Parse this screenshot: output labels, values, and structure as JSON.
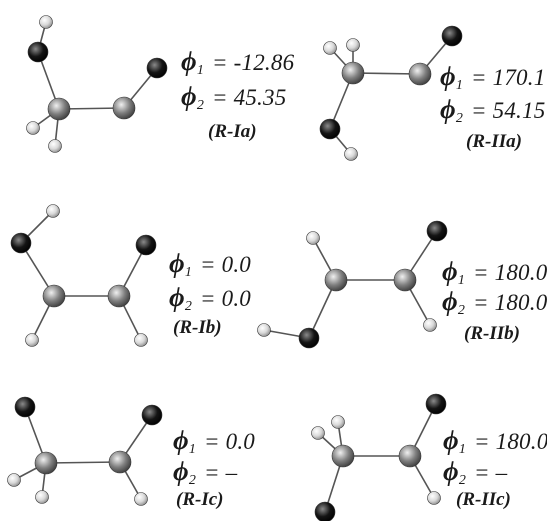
{
  "colors": {
    "bond": "#555555",
    "carbon": "#7f7f7f",
    "oxygen": "#141414",
    "hydrogen": "#d9d9d9",
    "text": "#1a1a1a"
  },
  "symbols": {
    "phi": "ϕ",
    "sub1": "1",
    "sub2": "2"
  },
  "conformers": [
    {
      "name": "(R-Ia)",
      "phi1": "= -12.86",
      "phi2": "= 45.35"
    },
    {
      "name": "(R-IIa)",
      "phi1": "= 170.1",
      "phi2": "= 54.15"
    },
    {
      "name": "(R-Ib)",
      "phi1": "= 0.0",
      "phi2": "= 0.0"
    },
    {
      "name": "(R-IIb)",
      "phi1": "= 180.0",
      "phi2": "= 180.0"
    },
    {
      "name": "(R-Ic)",
      "phi1": "= 0.0",
      "phi2": "= –"
    },
    {
      "name": "(R-IIc)",
      "phi1": "= 180.0",
      "phi2": "= –"
    }
  ]
}
